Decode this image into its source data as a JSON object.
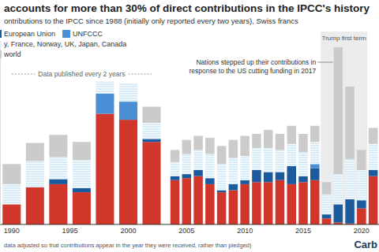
{
  "chart_data": {
    "type": "bar",
    "stacked": true,
    "grid": false,
    "tick_labels": "x",
    "title": "accounts for more than 30% of direct contributions in the IPCC's history",
    "subtitle": "ontributions to the IPCC since 1988 (initially only reported every two years), Swiss francs",
    "note": "data adjusted so that contributions appear in the year they were received, rather than pledged)",
    "logo": "Carb",
    "x": [
      1990,
      1992,
      1994,
      1996,
      1998,
      2000,
      2002,
      2004,
      2005,
      2006,
      2007,
      2008,
      2009,
      2010,
      2011,
      2012,
      2013,
      2014,
      2015,
      2016,
      2017,
      2018,
      2019,
      2020,
      2021
    ],
    "xlim": [
      1989,
      2021.5
    ],
    "xticks": [
      1990,
      1995,
      2000,
      2005,
      2010,
      2015,
      2020
    ],
    "ylim": [
      0,
      9
    ],
    "yticks": [
      0
    ],
    "series": [
      {
        "color": "#d1362b",
        "values": [
          1.0,
          1.85,
          2.0,
          1.6,
          5.5,
          5.2,
          4.1,
          2.2,
          2.3,
          2.4,
          2.0,
          1.6,
          1.7,
          2.0,
          2.1,
          2.1,
          2.2,
          2.0,
          2.1,
          2.2,
          0.3,
          0.1,
          0.05,
          0.8,
          2.4
        ]
      },
      {
        "name": "European Union",
        "color": "#1c5a9e",
        "values": [
          0,
          0,
          0.25,
          0.2,
          0,
          0,
          0.15,
          0.2,
          0.2,
          0.3,
          0.3,
          0.1,
          0.3,
          0.2,
          0.6,
          0.5,
          0.4,
          0.9,
          0.3,
          0.6,
          0.2,
          0.9,
          1.2,
          0.4,
          0.3
        ]
      },
      {
        "name": "UNFCCC",
        "color": "#4a8fd6",
        "values": [
          0,
          0,
          0,
          0,
          1.0,
          0.9,
          0,
          0,
          0,
          0,
          0,
          0,
          0,
          0,
          0,
          0,
          0,
          0,
          0,
          0.2,
          0,
          0,
          0,
          0,
          0
        ]
      },
      {
        "name": "y, France, Norway, UK, Japan, Canada",
        "color": "#d9edf9",
        "values": [
          1.0,
          1.3,
          1.1,
          1.4,
          0.6,
          0.9,
          0.8,
          0.7,
          1.0,
          1.0,
          1.2,
          1.3,
          1.3,
          1.2,
          1.1,
          1.2,
          1.1,
          1.1,
          1.2,
          1.1,
          1.0,
          1.5,
          2.0,
          1.5,
          1.3
        ]
      },
      {
        "name": "world",
        "color": "#cbcbcb",
        "values": [
          1.0,
          0.9,
          1.1,
          0.9,
          0,
          0,
          0.8,
          0.6,
          0.7,
          0.7,
          0.8,
          0.9,
          0.9,
          1.0,
          0.7,
          0.9,
          0.8,
          0.9,
          0.9,
          0.8,
          0.6,
          6.3,
          3.6,
          1.0,
          0.8
        ]
      }
    ],
    "annotations": [
      {
        "text": "Data published every 2 years",
        "x": [
          1990,
          2002
        ]
      },
      {
        "text": "Trump first term",
        "x": [
          2017,
          2020
        ]
      },
      {
        "text": "Nations stepped up their contributions in response to the US cutting funding in 2017",
        "x": 2018
      }
    ]
  }
}
